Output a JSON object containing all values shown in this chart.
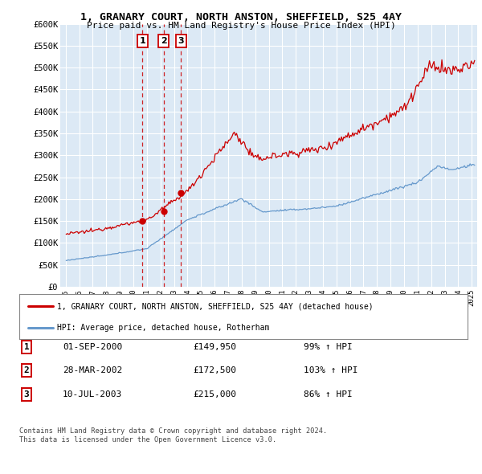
{
  "title": "1, GRANARY COURT, NORTH ANSTON, SHEFFIELD, S25 4AY",
  "subtitle": "Price paid vs. HM Land Registry's House Price Index (HPI)",
  "ylabel_ticks": [
    "£0",
    "£50K",
    "£100K",
    "£150K",
    "£200K",
    "£250K",
    "£300K",
    "£350K",
    "£400K",
    "£450K",
    "£500K",
    "£550K",
    "£600K"
  ],
  "ytick_values": [
    0,
    50000,
    100000,
    150000,
    200000,
    250000,
    300000,
    350000,
    400000,
    450000,
    500000,
    550000,
    600000
  ],
  "ylim": [
    0,
    600000
  ],
  "xlim_start": 1994.6,
  "xlim_end": 2025.4,
  "background_color": "#ffffff",
  "plot_bg_color": "#dce9f5",
  "grid_color": "#ffffff",
  "transactions": [
    {
      "label": "1",
      "date_num": 2000.67,
      "price": 149950
    },
    {
      "label": "2",
      "date_num": 2002.24,
      "price": 172500
    },
    {
      "label": "3",
      "date_num": 2003.52,
      "price": 215000
    }
  ],
  "transaction_info": [
    {
      "num": "1",
      "date": "01-SEP-2000",
      "price": "£149,950",
      "hpi": "99% ↑ HPI"
    },
    {
      "num": "2",
      "date": "28-MAR-2002",
      "price": "£172,500",
      "hpi": "103% ↑ HPI"
    },
    {
      "num": "3",
      "date": "10-JUL-2003",
      "price": "£215,000",
      "hpi": "86% ↑ HPI"
    }
  ],
  "legend_house": "1, GRANARY COURT, NORTH ANSTON, SHEFFIELD, S25 4AY (detached house)",
  "legend_hpi": "HPI: Average price, detached house, Rotherham",
  "footnote": "Contains HM Land Registry data © Crown copyright and database right 2024.\nThis data is licensed under the Open Government Licence v3.0.",
  "house_color": "#cc0000",
  "hpi_color": "#6699cc",
  "vline_color": "#cc0000"
}
